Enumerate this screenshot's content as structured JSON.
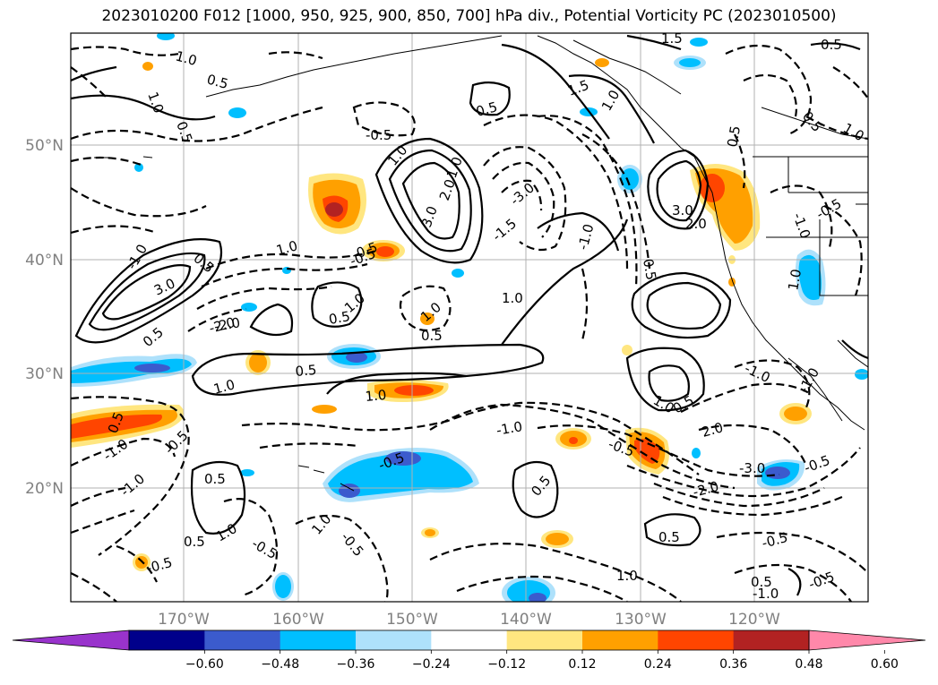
{
  "title": "2023010200 F012 [1000, 950, 925, 900, 850, 700] hPa div., Potential Vorticity PC (2023010500)",
  "lat_labels": [
    "50°N",
    "40°N",
    "30°N",
    "20°N"
  ],
  "lon_labels": [
    "170°W",
    "160°W",
    "150°W",
    "140°W",
    "130°W",
    "120°W"
  ],
  "colorbar": {
    "colors": [
      "#9933cc",
      "#00008b",
      "#3b5bcd",
      "#00bfff",
      "#aee1fb",
      "#ffffff",
      "#ffe680",
      "#ffa000",
      "#ff4500",
      "#b22222",
      "#ff88aa"
    ],
    "tick_labels": [
      "−0.60",
      "−0.48",
      "−0.36",
      "−0.24",
      "−0.12",
      "0.12",
      "0.24",
      "0.36",
      "0.48",
      "0.60"
    ]
  },
  "contour_labels": [
    "1.0",
    "0.5",
    "1.5",
    "0.5",
    "1.0",
    "0.5",
    "0.5",
    "1.5",
    "1.0",
    "0.5",
    "0.5",
    "1.0",
    "-0.5",
    "-0.5",
    "-1.0",
    "0.5",
    "1.0",
    "3.0",
    "2.0",
    "1.0",
    "3.0",
    "-3.0",
    "-1.5",
    "3.0",
    "2.0",
    "1.0",
    "0.5",
    "-2.0",
    "-1.0",
    "0.5",
    "1.0",
    "-0.5",
    "-1.0",
    "1.0",
    "-0.5",
    "0.5",
    "1.0",
    "1.0",
    "-2.0",
    "-1.0",
    "-1.0",
    "0.5",
    "0.5",
    "1.0",
    "-3.0",
    "-0.5",
    "2.0",
    "-2.0",
    "1.0",
    "0.5",
    "-1.0",
    "-0.5",
    "-1.0",
    "0.5",
    "-0.5",
    "1.0",
    "-1.0",
    "0.5",
    "-0.5",
    "-0.5",
    "0.5",
    "1.0",
    "-0.5",
    "-0.5",
    "1.0",
    "0.5",
    "-0.5",
    "0.5",
    "-0.5",
    "0.5",
    "1.0",
    "-1.0"
  ]
}
